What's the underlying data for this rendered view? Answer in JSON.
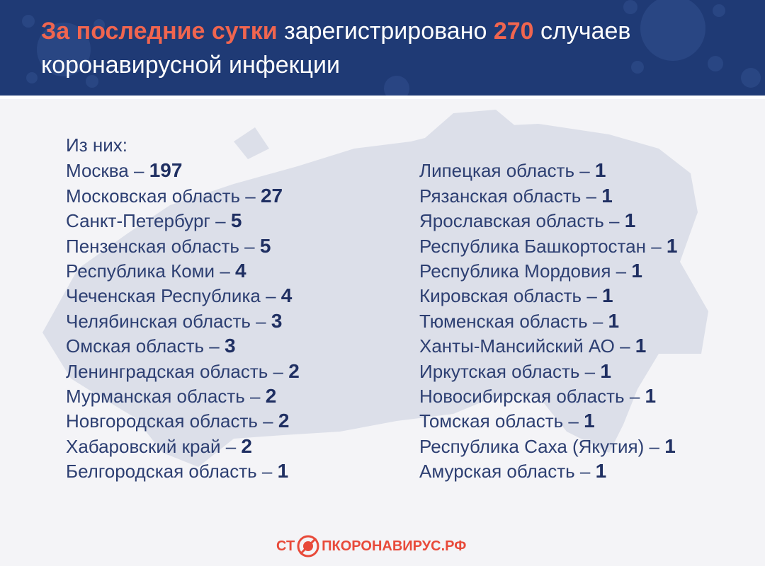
{
  "header": {
    "title_accent": "За последние сутки",
    "title_mid": " зарегистрировано ",
    "title_count": "270",
    "title_end": " случаев коронавирусной инфекции"
  },
  "intro": "Из них:",
  "dash": " – ",
  "left_list": [
    {
      "region": "Москва",
      "count": "197"
    },
    {
      "region": "Московская область",
      "count": "27"
    },
    {
      "region": "Санкт-Петербург",
      "count": "5"
    },
    {
      "region": "Пензенская область",
      "count": "5"
    },
    {
      "region": "Республика Коми",
      "count": "4"
    },
    {
      "region": "Чеченская Республика",
      "count": "4"
    },
    {
      "region": "Челябинская область",
      "count": "3"
    },
    {
      "region": "Омская область",
      "count": "3"
    },
    {
      "region": "Ленинградская область",
      "count": "2"
    },
    {
      "region": "Мурманская область",
      "count": "2"
    },
    {
      "region": "Новгородская область",
      "count": "2"
    },
    {
      "region": "Хабаровский край",
      "count": "2"
    },
    {
      "region": "Белгородская область",
      "count": "1"
    }
  ],
  "right_list": [
    {
      "region": "Липецкая область",
      "count": "1"
    },
    {
      "region": "Рязанская область",
      "count": "1"
    },
    {
      "region": "Ярославская область",
      "count": "1"
    },
    {
      "region": "Республика Башкортостан",
      "count": "1"
    },
    {
      "region": "Республика Мордовия",
      "count": "1"
    },
    {
      "region": "Кировская область",
      "count": "1"
    },
    {
      "region": "Тюменская область",
      "count": "1"
    },
    {
      "region": "Ханты-Мансийский АО",
      "count": "1"
    },
    {
      "region": "Иркутская область",
      "count": "1"
    },
    {
      "region": "Новосибирская область",
      "count": "1"
    },
    {
      "region": "Томская область",
      "count": "1"
    },
    {
      "region": "Республика Саха (Якутия)",
      "count": "1"
    },
    {
      "region": "Амурская область",
      "count": "1"
    }
  ],
  "footer": {
    "stop_part1": "СТ",
    "stop_part2": "ПКОРОНАВИРУС",
    "domain": ".РФ",
    "logo_icon": "virus-stop-icon"
  },
  "colors": {
    "header_bg": "#1f3a75",
    "accent": "#f0654f",
    "text": "#2d3f72",
    "map": "#d9dce7"
  }
}
